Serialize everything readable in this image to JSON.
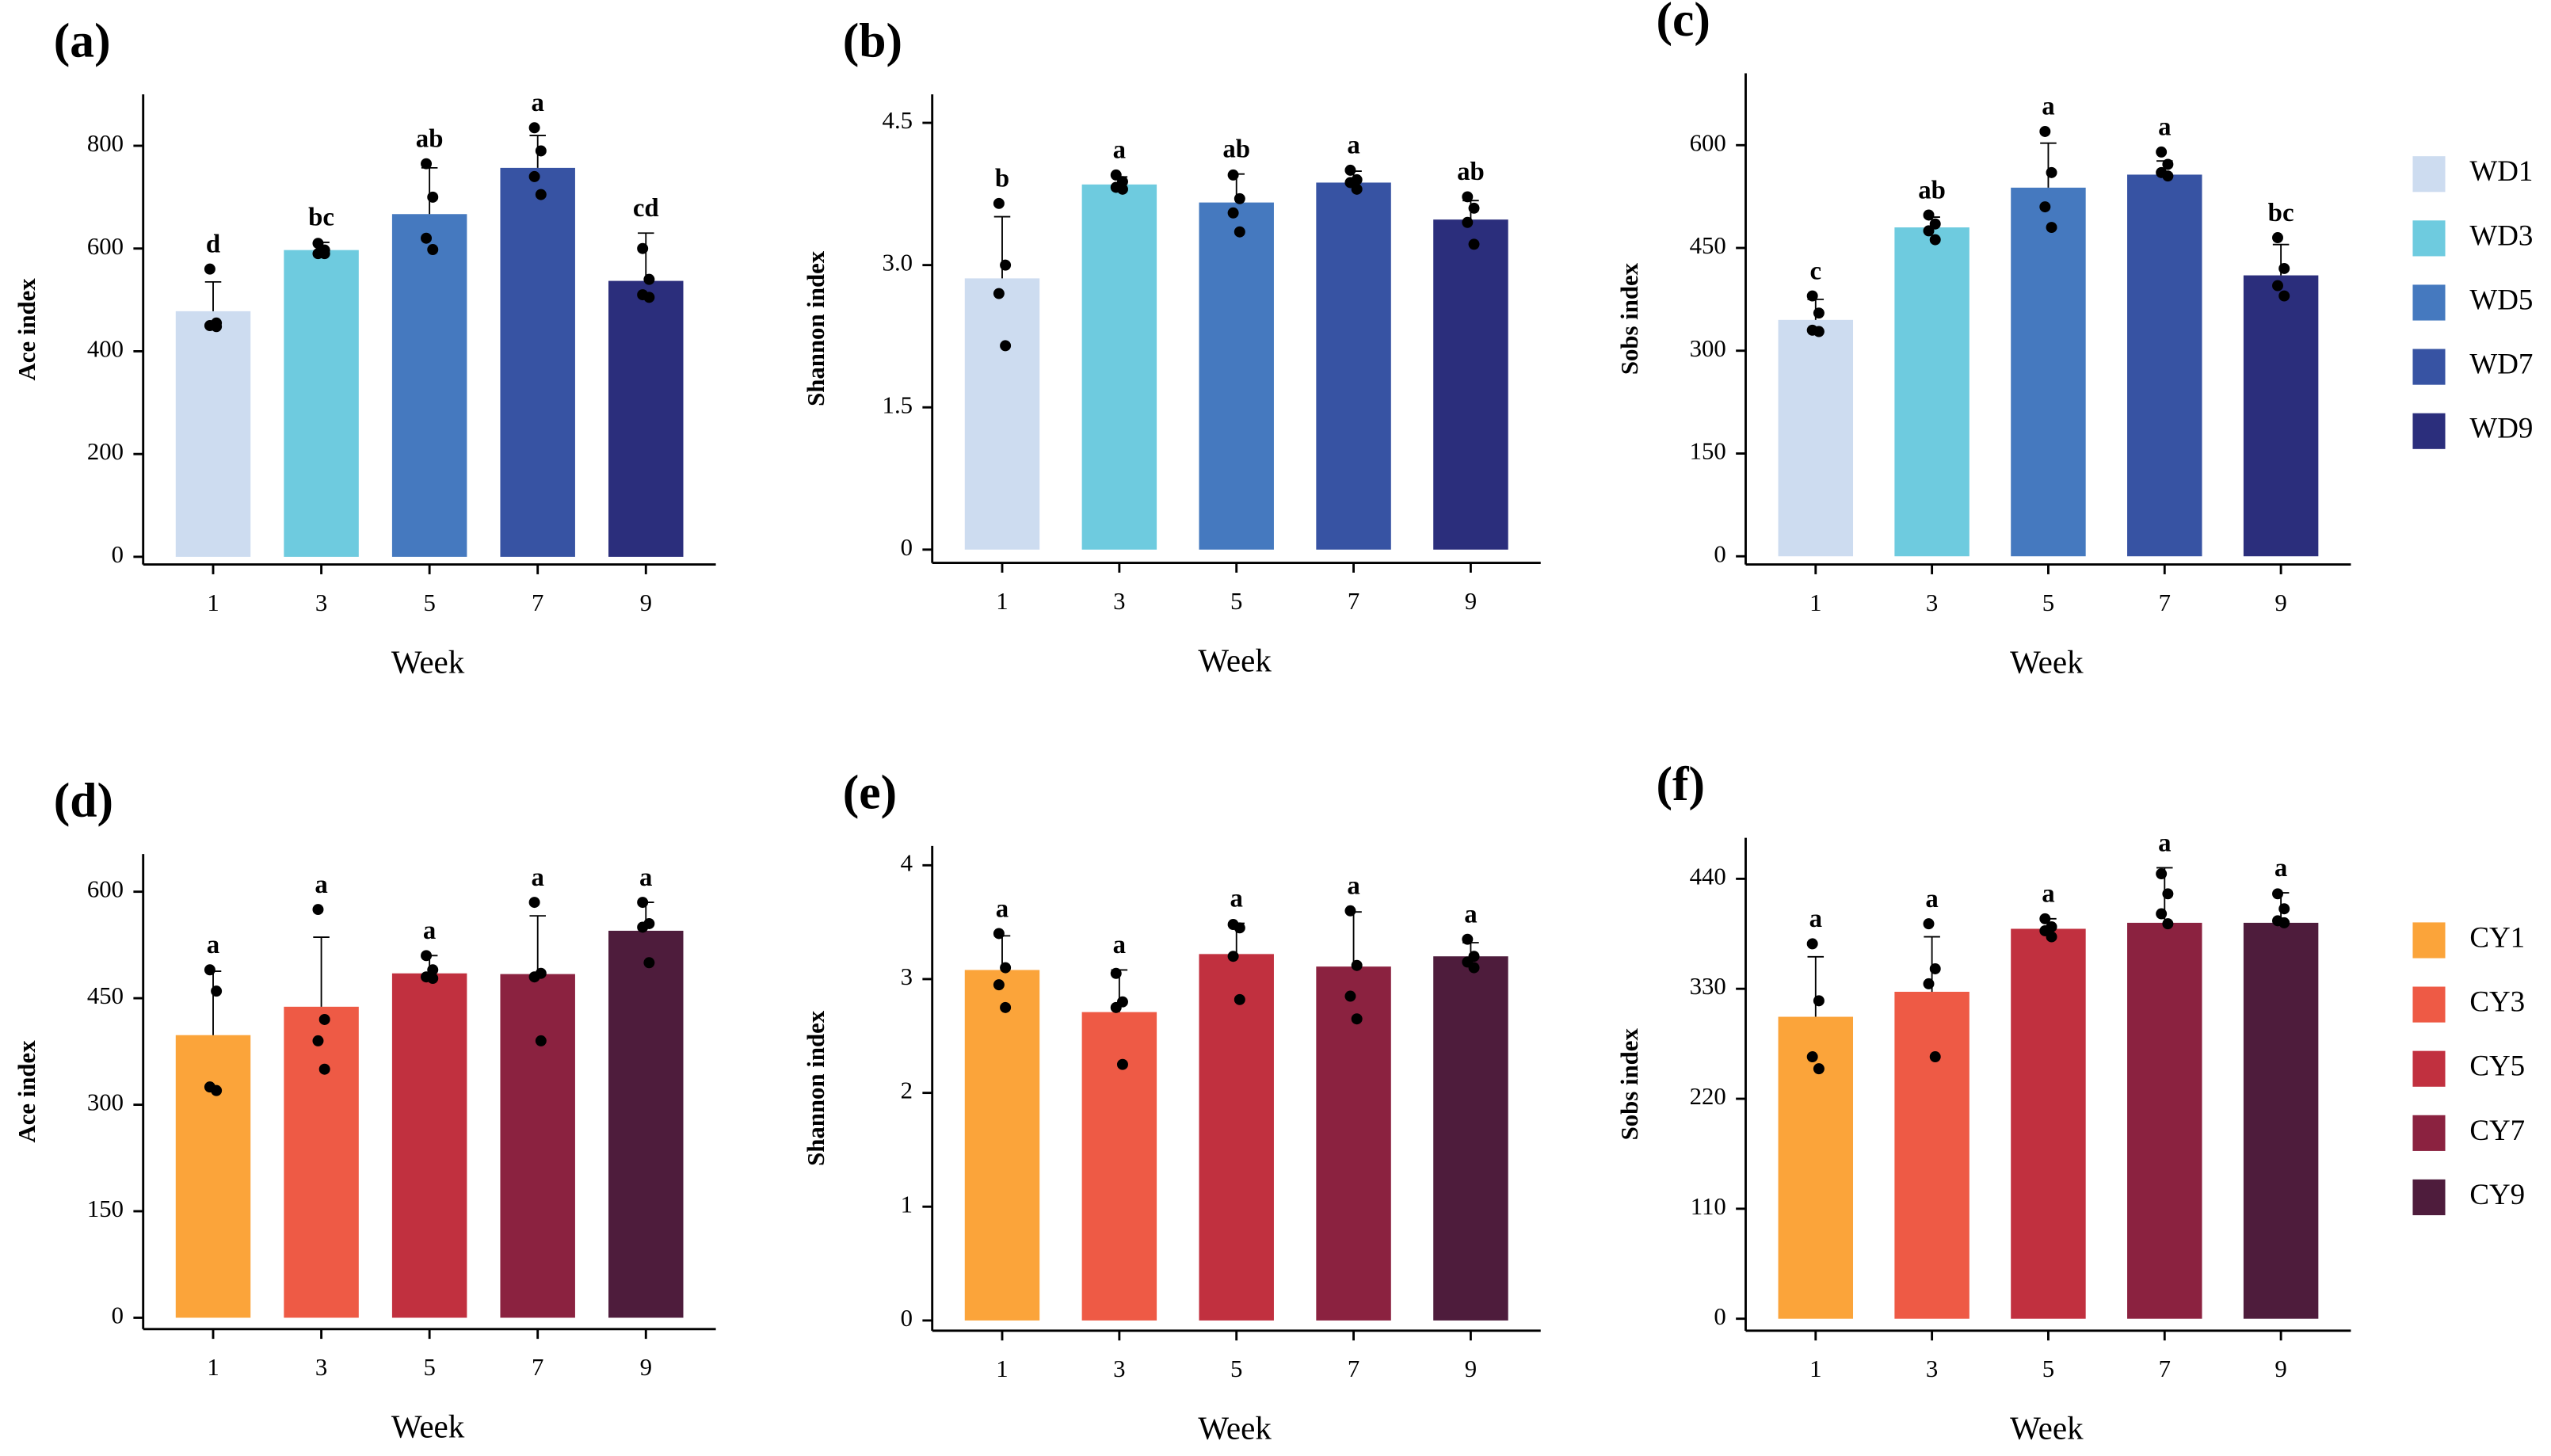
{
  "chart_data": [
    {
      "type": "bar",
      "title": "(a)",
      "ylabel": "Ace index",
      "xlabel": "Week",
      "categories": [
        "1",
        "3",
        "5",
        "7",
        "9"
      ],
      "values": [
        478,
        597,
        667,
        757,
        537
      ],
      "errors": [
        57,
        15,
        90,
        63,
        93
      ],
      "points": [
        [
          560,
          455,
          450,
          448
        ],
        [
          610,
          597,
          590,
          590
        ],
        [
          765,
          700,
          620,
          598
        ],
        [
          835,
          790,
          740,
          705
        ],
        [
          600,
          540,
          510,
          505
        ]
      ],
      "letters": [
        "d",
        "bc",
        "ab",
        "a",
        "cd"
      ],
      "colors": [
        "#cddcf0",
        "#6ecbdf",
        "#4579bf",
        "#3753a3",
        "#2b2e7c"
      ],
      "ylim": [
        -15,
        900
      ],
      "yticks": [
        0,
        200,
        400,
        600,
        800
      ]
    },
    {
      "type": "bar",
      "title": "(b)",
      "ylabel": "Shannon index",
      "xlabel": "Week",
      "categories": [
        "1",
        "3",
        "5",
        "7",
        "9"
      ],
      "values": [
        2.86,
        3.85,
        3.66,
        3.87,
        3.48
      ],
      "errors": [
        0.65,
        0.08,
        0.3,
        0.12,
        0.2
      ],
      "points": [
        [
          3.65,
          3.0,
          2.7,
          2.15
        ],
        [
          3.95,
          3.88,
          3.82,
          3.8
        ],
        [
          3.95,
          3.7,
          3.55,
          3.35
        ],
        [
          4.0,
          3.9,
          3.87,
          3.8
        ],
        [
          3.72,
          3.6,
          3.45,
          3.22
        ]
      ],
      "letters": [
        "b",
        "a",
        "ab",
        "a",
        "ab"
      ],
      "colors": [
        "#cddcf0",
        "#6ecbdf",
        "#4579bf",
        "#3753a3",
        "#2b2e7c"
      ],
      "ylim": [
        -0.14,
        4.8
      ],
      "yticks": [
        0,
        1.5,
        {
          "value": 3,
          "label": "3.0"
        },
        4.5
      ]
    },
    {
      "type": "bar",
      "title": "(c)",
      "ylabel": "Sobs index",
      "xlabel": "Week",
      "categories": [
        "1",
        "3",
        "5",
        "7",
        "9"
      ],
      "values": [
        345,
        480,
        538,
        557,
        410
      ],
      "errors": [
        30,
        15,
        65,
        20,
        45
      ],
      "points": [
        [
          380,
          355,
          330,
          328
        ],
        [
          498,
          485,
          475,
          462
        ],
        [
          620,
          560,
          510,
          480
        ],
        [
          590,
          572,
          560,
          555
        ],
        [
          465,
          420,
          395,
          380
        ]
      ],
      "letters": [
        "c",
        "ab",
        "a",
        "a",
        "bc"
      ],
      "colors": [
        "#cddcf0",
        "#6ecbdf",
        "#4579bf",
        "#3753a3",
        "#2b2e7c"
      ],
      "legend": [
        "WD1",
        "WD3",
        "WD5",
        "WD7",
        "WD9"
      ],
      "ylim": [
        -12,
        705
      ],
      "yticks": [
        0,
        150,
        300,
        450,
        600
      ]
    },
    {
      "type": "bar",
      "title": "(d)",
      "ylabel": "Ace index",
      "xlabel": "Week",
      "categories": [
        "1",
        "3",
        "5",
        "7",
        "9"
      ],
      "values": [
        398,
        438,
        485,
        484,
        545
      ],
      "errors": [
        90,
        98,
        25,
        82,
        40
      ],
      "points": [
        [
          490,
          460,
          325,
          320
        ],
        [
          575,
          420,
          390,
          350
        ],
        [
          510,
          490,
          480,
          478
        ],
        [
          585,
          485,
          480,
          390
        ],
        [
          585,
          555,
          550,
          500
        ]
      ],
      "letters": [
        "a",
        "a",
        "a",
        "a",
        "a"
      ],
      "colors": [
        "#fba43a",
        "#ee5a45",
        "#c1303f",
        "#8b2240",
        "#4e1c3c"
      ],
      "ylim": [
        -16,
        653
      ],
      "yticks": [
        0,
        150,
        300,
        450,
        600
      ]
    },
    {
      "type": "bar",
      "title": "(e)",
      "ylabel": "Shannon index",
      "xlabel": "Week",
      "categories": [
        "1",
        "3",
        "5",
        "7",
        "9"
      ],
      "values": [
        3.08,
        2.71,
        3.22,
        3.11,
        3.2
      ],
      "errors": [
        0.3,
        0.37,
        0.27,
        0.48,
        0.12
      ],
      "points": [
        [
          3.4,
          3.1,
          2.95,
          2.75
        ],
        [
          3.05,
          2.8,
          2.75,
          2.25
        ],
        [
          3.48,
          3.45,
          3.2,
          2.82
        ],
        [
          3.6,
          3.12,
          2.85,
          2.65
        ],
        [
          3.35,
          3.2,
          3.15,
          3.1
        ]
      ],
      "letters": [
        "a",
        "a",
        "a",
        "a",
        "a"
      ],
      "colors": [
        "#fba43a",
        "#ee5a45",
        "#c1303f",
        "#8b2240",
        "#4e1c3c"
      ],
      "ylim": [
        -0.09,
        4.17
      ],
      "yticks": [
        0,
        1,
        2,
        3,
        4
      ]
    },
    {
      "type": "bar",
      "title": "(f)",
      "ylabel": "Sobs index",
      "xlabel": "Week",
      "categories": [
        "1",
        "3",
        "5",
        "7",
        "9"
      ],
      "values": [
        302,
        327,
        390,
        396,
        396
      ],
      "errors": [
        60,
        55,
        10,
        55,
        30
      ],
      "points": [
        [
          375,
          318,
          262,
          250
        ],
        [
          395,
          350,
          335,
          262
        ],
        [
          400,
          392,
          388,
          382
        ],
        [
          445,
          425,
          405,
          395
        ],
        [
          425,
          410,
          398,
          396
        ]
      ],
      "letters": [
        "a",
        "a",
        "a",
        "a",
        "a"
      ],
      "colors": [
        "#fba43a",
        "#ee5a45",
        "#c1303f",
        "#8b2240",
        "#4e1c3c"
      ],
      "legend": [
        "CY1",
        "CY3",
        "CY5",
        "CY7",
        "CY9"
      ],
      "ylim": [
        -12,
        481
      ],
      "yticks": [
        0,
        110,
        220,
        330,
        440
      ]
    }
  ]
}
